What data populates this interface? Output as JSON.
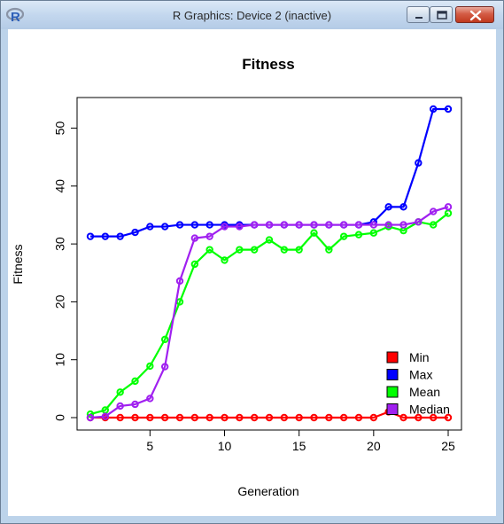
{
  "window": {
    "title": "R Graphics: Device 2 (inactive)",
    "app_icon": "r-logo-icon",
    "controls": [
      "minimize-icon",
      "maximize-icon",
      "close-icon"
    ]
  },
  "chart_data": {
    "type": "line",
    "title": "Fitness",
    "xlabel": "Generation",
    "ylabel": "Fitness",
    "xlim": [
      1,
      25
    ],
    "ylim": [
      0,
      53.3
    ],
    "x_ticks": [
      5,
      10,
      15,
      20,
      25
    ],
    "y_ticks": [
      0,
      10,
      20,
      30,
      40,
      50
    ],
    "grid": false,
    "legend_position": "bottom-right",
    "x": [
      1,
      2,
      3,
      4,
      5,
      6,
      7,
      8,
      9,
      10,
      11,
      12,
      13,
      14,
      15,
      16,
      17,
      18,
      19,
      20,
      21,
      22,
      23,
      24,
      25
    ],
    "series": [
      {
        "name": "Min",
        "color": "#ff0000",
        "values": [
          0,
          0,
          0,
          0,
          0,
          0,
          0,
          0,
          0,
          0,
          0,
          0,
          0,
          0,
          0,
          0,
          0,
          0,
          0,
          0,
          1.0,
          0,
          0,
          0,
          0
        ]
      },
      {
        "name": "Max",
        "color": "#0000ff",
        "values": [
          31.3,
          31.3,
          31.3,
          32.0,
          33.0,
          33.0,
          33.3,
          33.3,
          33.3,
          33.3,
          33.3,
          33.3,
          33.3,
          33.3,
          33.3,
          33.3,
          33.3,
          33.3,
          33.3,
          33.8,
          36.4,
          36.4,
          44.0,
          53.3,
          53.3
        ]
      },
      {
        "name": "Mean",
        "color": "#00ff00",
        "values": [
          0.6,
          1.3,
          4.4,
          6.3,
          8.9,
          13.5,
          20.0,
          26.5,
          29.0,
          27.2,
          29.0,
          29.0,
          30.7,
          29.0,
          29.0,
          31.9,
          29.0,
          31.3,
          31.6,
          31.9,
          33.0,
          32.3,
          33.8,
          33.3,
          35.3
        ]
      },
      {
        "name": "Median",
        "color": "#a020f0",
        "values": [
          0,
          0.2,
          2.0,
          2.3,
          3.3,
          8.8,
          23.6,
          31.0,
          31.3,
          33.0,
          33.0,
          33.3,
          33.3,
          33.3,
          33.3,
          33.3,
          33.3,
          33.3,
          33.3,
          33.3,
          33.3,
          33.3,
          33.8,
          35.6,
          36.4
        ]
      }
    ]
  }
}
